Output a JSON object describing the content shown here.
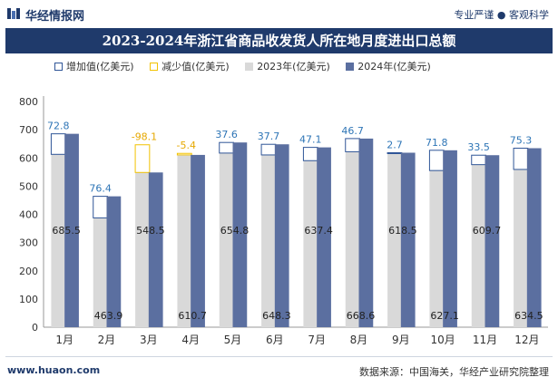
{
  "header": {
    "brand": "华经情报网",
    "slogan": "专业严谨 ● 客观科学"
  },
  "footer": {
    "website": "www.huaon.com",
    "source": "数据来源：中国海关，华经产业研究院整理"
  },
  "colors": {
    "title_bar": "#1f3a6b",
    "increase_border": "#2f5597",
    "decrease_border": "#f2c200",
    "series_2023": "#d9d9d9",
    "series_2024": "#5b6fa0",
    "increase_label": "#2e75b6",
    "decrease_label": "#e6a800"
  },
  "chart_data": {
    "type": "bar",
    "title": "2023-2024年浙江省商品收发货人所在地月度进出口总额",
    "categories": [
      "1月",
      "2月",
      "3月",
      "4月",
      "5月",
      "6月",
      "7月",
      "8月",
      "9月",
      "10月",
      "11月",
      "12月"
    ],
    "legend": {
      "increase": "增加值(亿美元)",
      "decrease": "减少值(亿美元)",
      "y2023": "2023年(亿美元)",
      "y2024": "2024年(亿美元)"
    },
    "series": [
      {
        "name": "2023年(亿美元)",
        "values": [
          612.7,
          387.5,
          646.6,
          616.1,
          617.2,
          610.6,
          590.3,
          621.9,
          615.8,
          555.3,
          576.2,
          559.2
        ]
      },
      {
        "name": "2024年(亿美元)",
        "values": [
          685.5,
          463.9,
          548.5,
          610.7,
          654.8,
          648.3,
          637.4,
          668.6,
          618.5,
          627.1,
          609.7,
          634.5
        ]
      }
    ],
    "change_labels": [
      "72.8",
      "76.4",
      "-98.1",
      "-5.4",
      "37.6",
      "37.7",
      "47.1",
      "46.7",
      "2.7",
      "71.8",
      "33.5",
      "75.3"
    ],
    "value_labels_2024": [
      "685.5",
      "463.9",
      "548.5",
      "610.7",
      "654.8",
      "648.3",
      "637.4",
      "668.6",
      "618.5",
      "627.1",
      "609.7",
      "634.5"
    ],
    "ylim": [
      0,
      800
    ],
    "yticks": [
      "0",
      "100",
      "200",
      "300",
      "400",
      "500",
      "600",
      "700",
      "800"
    ],
    "grid": false,
    "legend_position": "top"
  }
}
